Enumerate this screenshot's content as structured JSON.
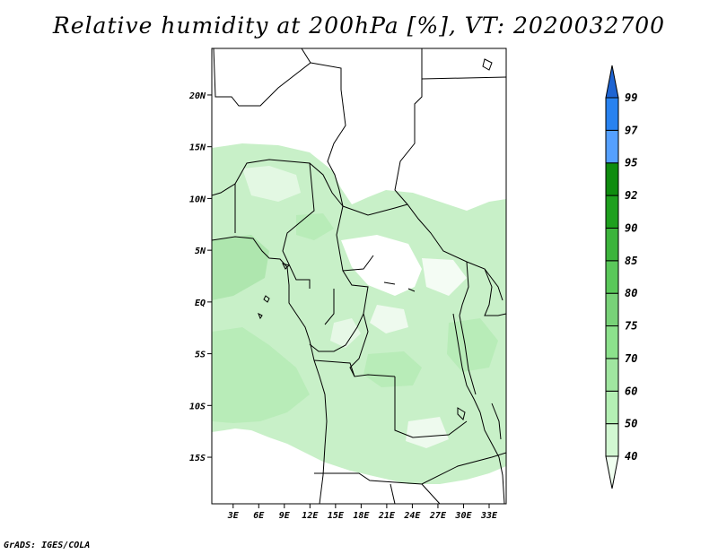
{
  "title": "Relative humidity at 200hPa [%], VT: 2020032700",
  "footer": "GrADS: IGES/COLA",
  "map": {
    "lat_range": [
      -19.5,
      24.5
    ],
    "lon_range": [
      0.5,
      35
    ],
    "lat_labels": [
      "20N",
      "15N",
      "10N",
      "5N",
      "EQ",
      "5S",
      "10S",
      "15S"
    ],
    "lon_labels": [
      "3E",
      "6E",
      "9E",
      "12E",
      "15E",
      "18E",
      "21E",
      "24E",
      "27E",
      "30E",
      "33E"
    ]
  },
  "colorbar": {
    "levels": [
      "40",
      "50",
      "60",
      "70",
      "75",
      "80",
      "85",
      "90",
      "92",
      "95",
      "97",
      "99"
    ],
    "colors": [
      "#f0fff0",
      "#d2f8d2",
      "#b4f0b4",
      "#a0e6a0",
      "#8ce18c",
      "#78d278",
      "#5ac85a",
      "#3cb43c",
      "#1ea01e",
      "#0f8c0f",
      "#55a0ff",
      "#2882f0",
      "#1e64d2"
    ]
  },
  "field": {
    "dominant_color": "#c8f0c8",
    "light_color": "#e3f8e3",
    "mid_color": "#aee6ae"
  }
}
